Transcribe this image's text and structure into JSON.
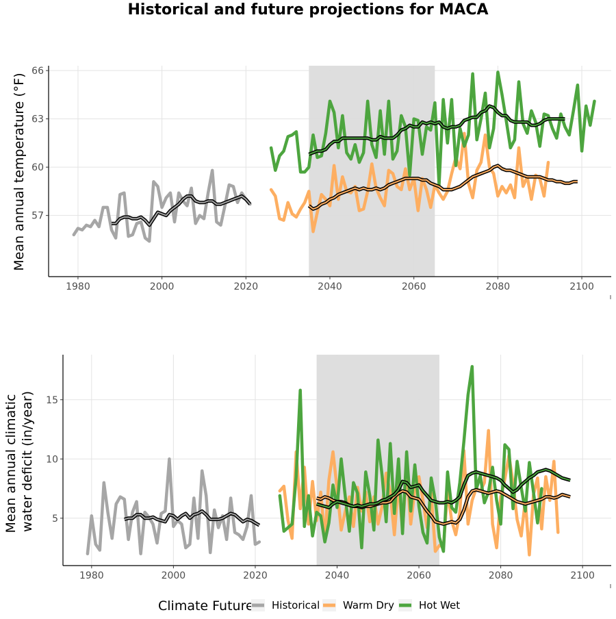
{
  "page": {
    "title": "Historical and future projections for MACA"
  },
  "colors": {
    "historical": "#a6a6a6",
    "warm_dry": "#fdae61",
    "hot_wet": "#4da53f",
    "smooth": "#000000",
    "shade": "#dcdcdc",
    "grid": "#e3e3e3"
  },
  "legend": {
    "title": "Climate Future",
    "items": [
      {
        "label": "Historical",
        "color": "#a6a6a6"
      },
      {
        "label": "Warm Dry",
        "color": "#fdae61"
      },
      {
        "label": "Hot Wet",
        "color": "#4da53f"
      }
    ]
  },
  "chart_data": [
    {
      "type": "line",
      "ylabel": "Mean annual temperature (°F)",
      "xlim": [
        1973,
        2107
      ],
      "ylim": [
        53.2,
        66.3
      ],
      "x_ticks": [
        1980,
        2000,
        2020,
        2040,
        2060,
        2080,
        2100
      ],
      "y_ticks": [
        57,
        60,
        63,
        66
      ],
      "grid": true,
      "shaded_range": [
        2035,
        2065
      ],
      "series": [
        {
          "name": "Historical",
          "color_key": "historical",
          "x_start": 1979,
          "values": [
            55.8,
            56.2,
            56.1,
            56.4,
            56.3,
            56.7,
            56.3,
            57.5,
            57.5,
            56.1,
            55.6,
            58.3,
            58.4,
            55.7,
            55.8,
            56.5,
            56.6,
            55.6,
            55.4,
            59.1,
            58.8,
            57.5,
            58.1,
            58.4,
            56.6,
            58.4,
            57.9,
            57.6,
            58.7,
            56.5,
            57.0,
            56.8,
            58.4,
            59.8,
            56.6,
            56.4,
            57.6,
            58.9,
            58.8,
            57.8,
            58.4,
            58.0,
            57.7
          ]
        },
        {
          "name": "Warm Dry",
          "color_key": "warm_dry",
          "x_start": 2026,
          "values": [
            58.6,
            58.2,
            56.8,
            56.7,
            57.8,
            57.1,
            56.9,
            57.4,
            57.8,
            58.5,
            56.0,
            57.2,
            58.3,
            58.0,
            57.6,
            60.1,
            58.0,
            59.4,
            58.5,
            58.4,
            58.8,
            57.3,
            57.4,
            58.5,
            60.2,
            58.7,
            58.1,
            57.6,
            59.8,
            59.6,
            58.8,
            58.6,
            59.9,
            58.6,
            59.3,
            57.3,
            59.3,
            58.6,
            57.5,
            58.9,
            58.4,
            58.0,
            58.5,
            59.6,
            60.6,
            59.9,
            62.1,
            59.0,
            58.1,
            59.8,
            60.3,
            62.0,
            60.0,
            59.6,
            58.2,
            58.8,
            58.4,
            58.9,
            58.1,
            61.2,
            58.8,
            59.4,
            58.0,
            59.5,
            59.3,
            58.2,
            60.3
          ]
        },
        {
          "name": "Hot Wet",
          "color_key": "hot_wet",
          "x_start": 2026,
          "values": [
            61.2,
            59.8,
            60.7,
            61.0,
            61.9,
            62.0,
            62.2,
            59.7,
            59.7,
            60.0,
            62.0,
            60.6,
            60.7,
            62.1,
            64.1,
            63.4,
            61.2,
            63.2,
            60.9,
            60.5,
            61.4,
            60.3,
            60.9,
            64.1,
            61.4,
            60.6,
            63.5,
            60.8,
            64.1,
            60.5,
            61.0,
            63.2,
            62.5,
            59.5,
            63.0,
            62.9,
            60.8,
            62.5,
            62.3,
            64.0,
            58.9,
            64.2,
            61.5,
            64.2,
            60.1,
            62.4,
            61.3,
            62.0,
            65.8,
            61.7,
            63.0,
            64.6,
            61.2,
            62.4,
            65.9,
            64.5,
            62.9,
            61.2,
            61.7,
            65.3,
            62.7,
            62.1,
            63.5,
            62.8,
            61.3,
            63.3,
            63.2,
            62.4,
            61.8,
            63.3,
            62.5,
            62.0,
            63.5,
            65.1,
            61.0,
            63.8,
            62.6,
            64.1
          ]
        },
        {
          "name": "",
          "color_key": "smooth_historical",
          "x_start": 1988,
          "values": [
            56.5,
            56.5,
            56.8,
            56.9,
            56.9,
            56.8,
            56.8,
            56.9,
            56.7,
            56.4,
            56.8,
            57.2,
            57.1,
            57.0,
            57.3,
            57.5,
            57.7,
            58.0,
            58.2,
            58.2,
            57.9,
            57.8,
            57.8,
            57.9,
            57.9,
            57.7,
            57.7,
            57.8,
            57.9,
            58.0,
            58.1,
            58.2,
            58.0,
            57.7
          ]
        },
        {
          "name": "",
          "color_key": "smooth_warm_dry",
          "x_start": 2035,
          "values": [
            57.6,
            57.4,
            57.5,
            57.7,
            57.8,
            58.0,
            58.1,
            58.3,
            58.4,
            58.5,
            58.6,
            58.7,
            58.6,
            58.7,
            58.6,
            58.6,
            58.7,
            58.6,
            58.7,
            58.9,
            59.0,
            59.1,
            59.2,
            59.3,
            59.3,
            59.3,
            59.3,
            59.2,
            59.2,
            59.0,
            58.9,
            58.8,
            58.6,
            58.6,
            58.6,
            58.7,
            58.8,
            59.0,
            59.2,
            59.4,
            59.5,
            59.6,
            59.7,
            59.8,
            60.0,
            60.1,
            59.9,
            59.8,
            59.8,
            59.7,
            59.6,
            59.5,
            59.4,
            59.4,
            59.4,
            59.4,
            59.3,
            59.2,
            59.2,
            59.1,
            59.1,
            59.0,
            59.0,
            59.1,
            59.1
          ]
        },
        {
          "name": "",
          "color_key": "smooth_hot_wet",
          "x_start": 2035,
          "values": [
            60.8,
            60.9,
            61.0,
            61.0,
            61.1,
            61.4,
            61.6,
            61.6,
            61.8,
            61.8,
            61.8,
            61.8,
            61.8,
            61.8,
            61.8,
            61.7,
            61.7,
            61.9,
            61.8,
            61.8,
            61.8,
            62.0,
            62.3,
            62.4,
            62.6,
            62.5,
            62.5,
            62.8,
            62.7,
            62.8,
            62.7,
            62.8,
            62.5,
            62.4,
            62.5,
            62.5,
            62.6,
            62.9,
            63.0,
            63.1,
            63.1,
            63.4,
            63.5,
            63.8,
            63.7,
            63.4,
            63.2,
            63.2,
            62.9,
            62.8,
            62.8,
            62.8,
            62.8,
            62.6,
            62.6,
            62.7,
            62.9,
            63.0,
            63.0,
            63.0,
            63.0,
            63.0
          ]
        }
      ]
    },
    {
      "type": "line",
      "ylabel": "Mean annual climatic water deficit (in/year)",
      "xlim": [
        1973,
        2107
      ],
      "ylim": [
        1.0,
        18.8
      ],
      "x_ticks": [
        1980,
        2000,
        2020,
        2040,
        2060,
        2080,
        2100
      ],
      "y_ticks": [
        5,
        10,
        15
      ],
      "grid": true,
      "shaded_range": [
        2035,
        2065
      ],
      "series": [
        {
          "name": "Historical",
          "color_key": "historical",
          "x_start": 1979,
          "values": [
            2.0,
            5.2,
            2.8,
            2.3,
            8.0,
            5.4,
            3.3,
            6.2,
            6.8,
            6.6,
            3.2,
            5.5,
            6.4,
            2.0,
            5.5,
            5.1,
            4.5,
            2.9,
            5.4,
            5.6,
            10.0,
            4.3,
            4.8,
            4.5,
            2.5,
            2.8,
            6.7,
            3.3,
            9.0,
            6.9,
            2.1,
            5.7,
            4.2,
            5.2,
            3.2,
            6.7,
            3.8,
            3.6,
            3.2,
            4.3,
            6.9,
            2.8,
            3.0
          ]
        },
        {
          "name": "Warm Dry",
          "color_key": "warm_dry",
          "x_start": 2026,
          "values": [
            7.3,
            7.7,
            4.8,
            3.3,
            10.6,
            5.8,
            9.3,
            4.5,
            8.1,
            4.8,
            7.2,
            3.2,
            8.2,
            10.6,
            7.5,
            4.0,
            5.6,
            6.8,
            4.3,
            7.6,
            5.6,
            7.2,
            4.7,
            6.8,
            4.5,
            6.0,
            8.8,
            7.2,
            3.6,
            8.0,
            4.0,
            9.1,
            4.5,
            7.4,
            8.5,
            6.5,
            4.2,
            7.1,
            2.2,
            2.7,
            2.6,
            7.3,
            4.8,
            3.6,
            5.5,
            10.7,
            4.5,
            6.5,
            7.5,
            7.3,
            8.0,
            12.4,
            4.5,
            2.5,
            6.8,
            8.3,
            10.3,
            8.0,
            4.9,
            3.5,
            6.5,
            1.9,
            7.0,
            8.4,
            4.1,
            8.5,
            6.5,
            9.8,
            3.8
          ]
        },
        {
          "name": "Hot Wet",
          "color_key": "hot_wet",
          "x_start": 2026,
          "values": [
            6.9,
            3.9,
            4.2,
            4.5,
            8.5,
            15.8,
            4.3,
            6.9,
            3.5,
            5.5,
            5.2,
            3.0,
            4.6,
            7.8,
            5.9,
            10.0,
            6.8,
            3.9,
            8.0,
            7.1,
            2.5,
            8.9,
            6.9,
            4.0,
            11.6,
            8.6,
            4.7,
            11.3,
            5.4,
            10.0,
            3.7,
            10.6,
            5.6,
            9.5,
            6.0,
            3.8,
            2.9,
            8.4,
            6.5,
            3.4,
            2.2,
            8.9,
            5.9,
            5.5,
            8.0,
            11.5,
            15.4,
            17.8,
            7.4,
            8.6,
            6.3,
            7.2,
            9.3,
            6.5,
            4.5,
            11.2,
            10.8,
            5.8,
            9.8,
            7.6,
            5.6,
            9.7,
            7.2,
            4.6,
            7.5
          ]
        },
        {
          "name": "",
          "color_key": "smooth_historical",
          "x_start": 1988,
          "values": [
            4.9,
            5.0,
            5.0,
            5.3,
            5.3,
            5.0,
            5.0,
            5.1,
            4.9,
            4.8,
            4.7,
            5.3,
            5.2,
            4.9,
            5.2,
            5.4,
            5.0,
            5.3,
            5.4,
            5.6,
            5.3,
            4.9,
            4.9,
            4.9,
            5.0,
            5.2,
            5.4,
            5.3,
            5.0,
            4.7,
            4.9,
            4.8,
            4.6,
            4.4
          ]
        },
        {
          "name": "",
          "color_key": "smooth_warm_dry",
          "x_start": 2035,
          "values": [
            6.7,
            6.6,
            6.8,
            6.7,
            6.5,
            6.4,
            6.4,
            6.3,
            6.1,
            6.0,
            6.0,
            5.9,
            6.0,
            6.0,
            6.1,
            6.2,
            6.3,
            6.3,
            6.4,
            6.8,
            7.1,
            7.3,
            7.2,
            6.8,
            6.7,
            6.6,
            6.1,
            5.6,
            5.2,
            4.7,
            4.6,
            4.5,
            4.6,
            4.7,
            4.6,
            4.9,
            5.7,
            6.8,
            7.3,
            7.4,
            7.3,
            7.2,
            7.1,
            7.2,
            7.3,
            7.2,
            7.0,
            6.8,
            6.6,
            6.4,
            6.3,
            6.2,
            6.3,
            6.4,
            6.5,
            6.6,
            6.8,
            6.8,
            6.7,
            6.8,
            7.0,
            6.9,
            6.8
          ]
        },
        {
          "name": "",
          "color_key": "smooth_hot_wet",
          "x_start": 2035,
          "values": [
            6.2,
            6.1,
            6.0,
            5.9,
            6.2,
            6.4,
            6.3,
            6.2,
            6.1,
            6.0,
            6.1,
            6.0,
            6.1,
            6.2,
            6.2,
            6.3,
            6.5,
            6.6,
            6.8,
            7.0,
            7.4,
            8.1,
            8.0,
            7.6,
            7.7,
            7.8,
            7.3,
            6.9,
            6.5,
            6.4,
            6.3,
            6.3,
            6.4,
            6.3,
            6.5,
            6.8,
            7.8,
            8.6,
            8.8,
            8.9,
            8.8,
            8.7,
            8.6,
            8.5,
            8.4,
            8.2,
            7.8,
            7.5,
            7.2,
            7.4,
            7.8,
            8.1,
            8.4,
            8.6,
            8.9,
            9.0,
            9.1,
            9.0,
            8.8,
            8.6,
            8.4,
            8.3,
            8.2
          ]
        }
      ]
    }
  ]
}
